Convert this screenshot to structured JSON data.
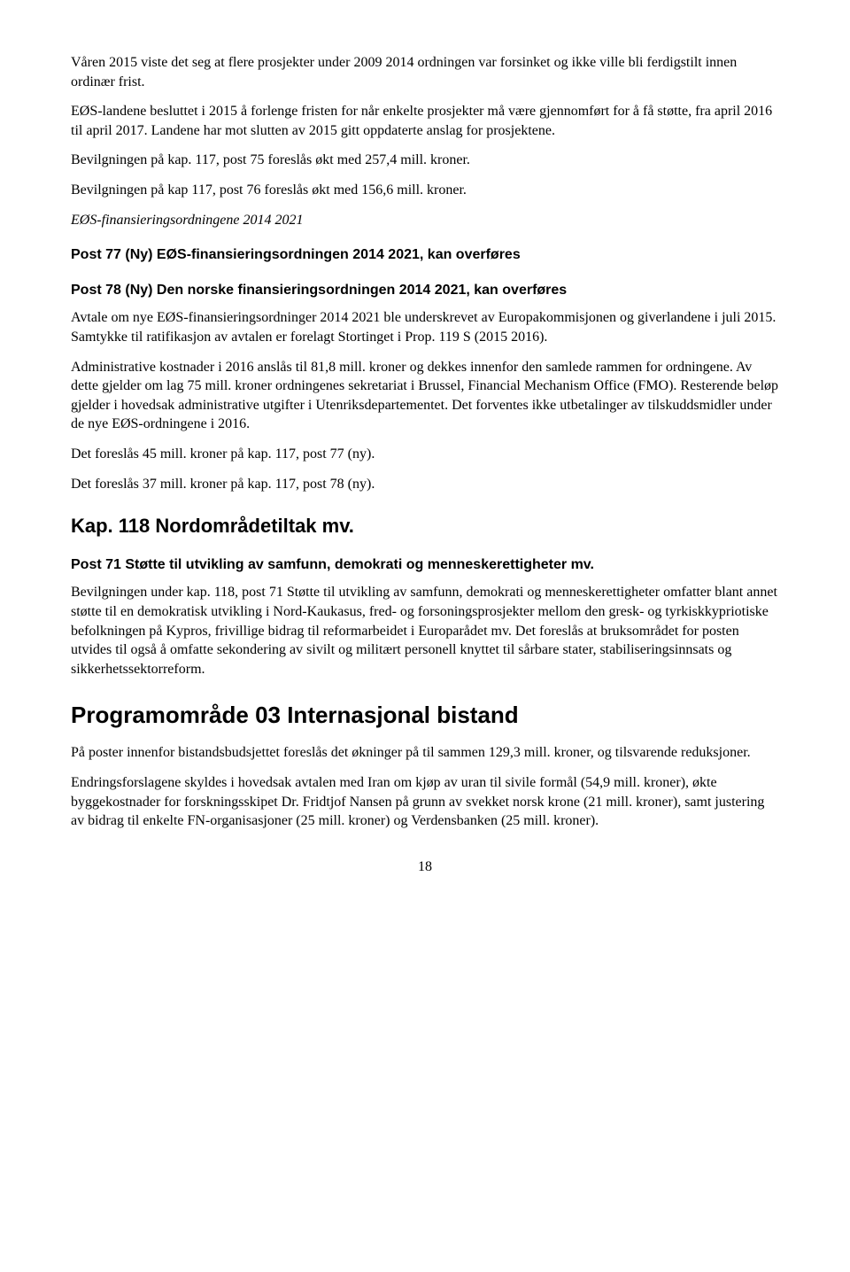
{
  "p1": "Våren 2015 viste det seg at flere prosjekter under 2009 2014 ordningen var forsinket og ikke ville bli ferdigstilt innen ordinær frist.",
  "p2": "EØS-landene besluttet i 2015 å forlenge fristen for når enkelte prosjekter må være gjennomført for å få støtte, fra april 2016 til april 2017. Landene har mot slutten av 2015 gitt oppdaterte anslag for prosjektene.",
  "p3": "Bevilgningen på kap. 117, post 75 foreslås økt med 257,4 mill. kroner.",
  "p4": "Bevilgningen på kap 117, post 76 foreslås økt med 156,6 mill. kroner.",
  "p5": "EØS-finansieringsordningene 2014 2021",
  "h_post77": "Post 77 (Ny) EØS-finansieringsordningen 2014 2021, kan overføres",
  "h_post78": "Post 78 (Ny) Den norske finansieringsordningen 2014 2021, kan overføres",
  "p6": "Avtale om nye EØS-finansieringsordninger 2014 2021 ble underskrevet av Europakommisjonen og giverlandene i juli 2015. Samtykke til ratifikasjon av avtalen er forelagt Stortinget i Prop. 119 S (2015 2016).",
  "p7": "Administrative kostnader i 2016 anslås til 81,8 mill. kroner og dekkes innenfor den samlede rammen for ordningene. Av dette gjelder om lag 75 mill. kroner ordningenes sekretariat i Brussel, Financial Mechanism Office (FMO). Resterende beløp gjelder i hovedsak administrative utgifter i Utenriksdepartementet. Det forventes ikke utbetalinger av tilskuddsmidler under de nye EØS-ordningene i 2016.",
  "p8": "Det foreslås 45 mill. kroner på kap. 117, post 77 (ny).",
  "p9": "Det foreslås 37 mill. kroner på kap. 117, post 78 (ny).",
  "h_kap118": "Kap. 118 Nordområdetiltak mv.",
  "h_post71": "Post 71 Støtte til utvikling av samfunn, demokrati og menneskerettigheter mv.",
  "p10": "Bevilgningen under kap. 118, post 71 Støtte til utvikling av samfunn, demokrati og menneskerettigheter omfatter blant annet støtte til en demokratisk utvikling i Nord-Kaukasus, fred- og forsoningsprosjekter mellom den gresk- og tyrkiskkypriotiske befolkningen på Kypros, frivillige bidrag til reformarbeidet i Europarådet mv. Det foreslås at bruksområdet for posten utvides til også å omfatte sekondering av sivilt og militært personell knyttet til sårbare stater, stabiliseringsinnsats og sikkerhetssektorreform.",
  "h_prog03": "Programområde 03 Internasjonal bistand",
  "p11": "På poster innenfor bistandsbudsjettet foreslås det økninger på til sammen 129,3 mill. kroner, og tilsvarende reduksjoner.",
  "p12": "Endringsforslagene skyldes i hovedsak avtalen med Iran om kjøp av uran til sivile formål (54,9 mill. kroner), økte byggekostnader for forskningsskipet Dr. Fridtjof Nansen på grunn av svekket norsk krone (21 mill. kroner), samt justering av bidrag til enkelte FN-organisasjoner (25 mill. kroner) og Verdensbanken (25 mill. kroner).",
  "page_number": "18"
}
